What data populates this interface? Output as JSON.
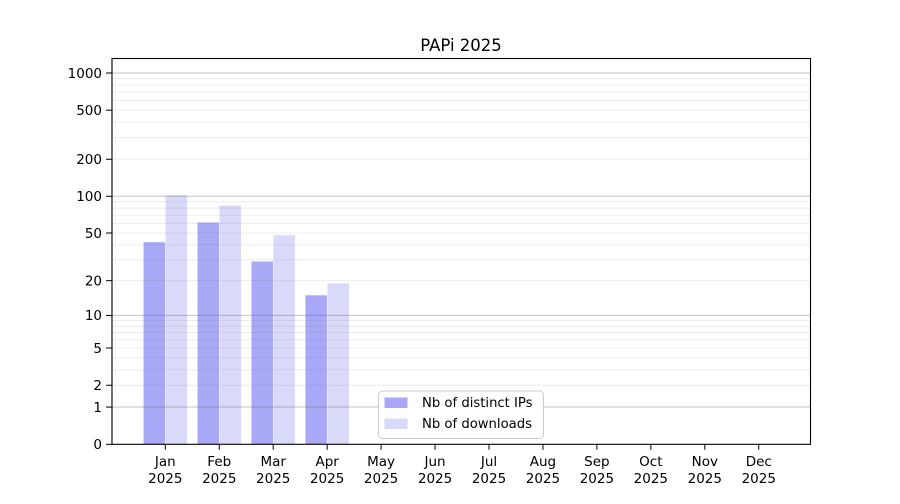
{
  "chart_data": {
    "type": "bar",
    "title": "PAPi 2025",
    "months": [
      "Jan",
      "Feb",
      "Mar",
      "Apr",
      "May",
      "Jun",
      "Jul",
      "Aug",
      "Sep",
      "Oct",
      "Nov",
      "Dec"
    ],
    "year_label": "2025",
    "series": [
      {
        "name": "Nb of distinct IPs",
        "color": "#a8a8f6",
        "values": [
          42,
          61,
          29,
          15,
          0,
          0,
          0,
          0,
          0,
          0,
          0,
          0
        ]
      },
      {
        "name": "Nb of downloads",
        "color": "#d9d9f9",
        "values": [
          102,
          84,
          48,
          19,
          0,
          0,
          0,
          0,
          0,
          0,
          0,
          0
        ]
      }
    ],
    "yticks": [
      0,
      1,
      2,
      5,
      10,
      20,
      50,
      100,
      200,
      500,
      1000
    ],
    "ylim": [
      0,
      1300
    ],
    "yscale": "symlog",
    "grid": "horizontal",
    "legend_position": "lower-center-inside",
    "xlabel": "",
    "ylabel": ""
  }
}
